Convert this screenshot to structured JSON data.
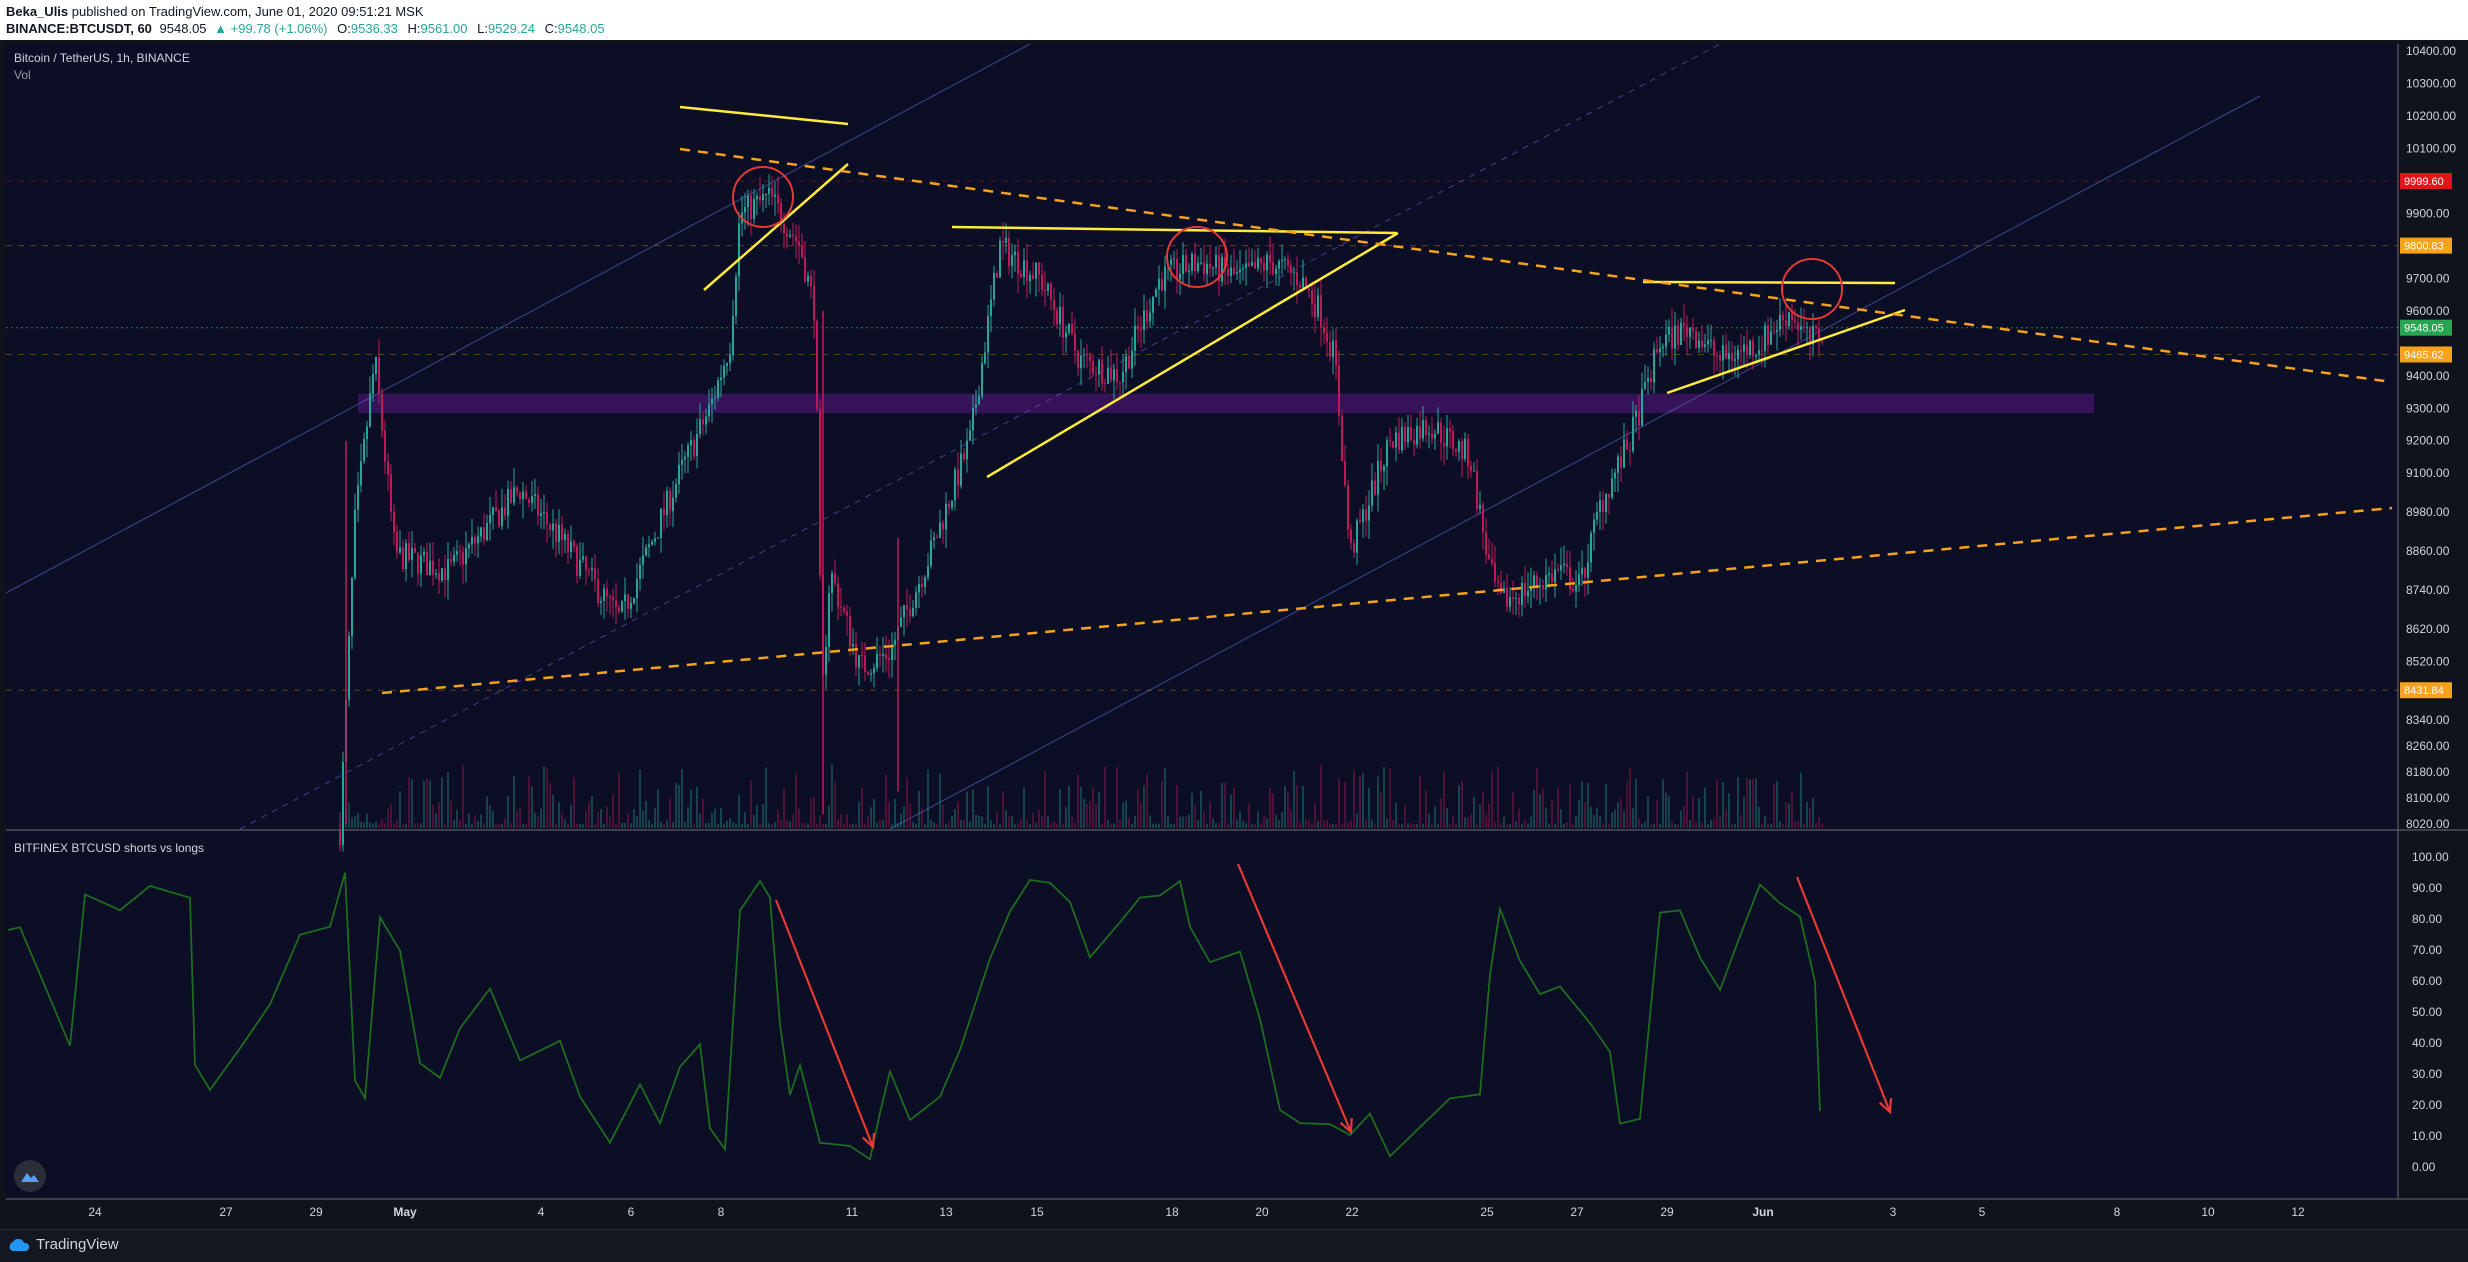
{
  "header": {
    "author": "Beka_Ulis",
    "published": "published on TradingView.com, June 01, 2020 09:51:21 MSK",
    "symbol": "BINANCE:BTCUSDT, 60",
    "last": "9548.05",
    "change": "+99.78 (+1.06%)",
    "ohlc": [
      {
        "k": "O:",
        "v": "9536.33"
      },
      {
        "k": "H:",
        "v": "9561.00"
      },
      {
        "k": "L:",
        "v": "9529.24"
      },
      {
        "k": "C:",
        "v": "9548.05"
      }
    ]
  },
  "main_pane": {
    "title": "Bitcoin / TetherUS, 1h, BINANCE",
    "subtitle": "Vol",
    "price_ticks": [
      "10400.00",
      "10300.00",
      "10200.00",
      "10100.00",
      "9900.00",
      "9700.00",
      "9600.00",
      "9400.00",
      "9300.00",
      "9200.00",
      "9100.00",
      "8980.00",
      "8860.00",
      "8740.00",
      "8620.00",
      "8520.00",
      "8420.00",
      "8340.00",
      "8260.00",
      "8180.00",
      "8100.00",
      "8020.00"
    ],
    "price_badges": [
      {
        "label": "9999.60",
        "color": "#e0161a"
      },
      {
        "label": "9800.83",
        "color": "#f6a21a"
      },
      {
        "label": "9548.05",
        "color": "#26a650"
      },
      {
        "label": "9465.62",
        "color": "#f6a21a"
      },
      {
        "label": "8431.84",
        "color": "#f6a21a"
      }
    ]
  },
  "indicator_pane": {
    "title": "BITFINEX BTCUSD shorts vs longs",
    "ticks": [
      "100.00",
      "90.00",
      "80.00",
      "70.00",
      "60.00",
      "50.00",
      "40.00",
      "30.00",
      "20.00",
      "10.00",
      "0.00"
    ]
  },
  "time_axis": [
    "24",
    "27",
    "29",
    "May",
    "4",
    "6",
    "8",
    "11",
    "13",
    "15",
    "18",
    "20",
    "22",
    "25",
    "27",
    "29",
    "Jun",
    "3",
    "5",
    "8",
    "10",
    "12"
  ],
  "footer": {
    "brand": "TradingView"
  },
  "chart_data": {
    "type": "line",
    "title": "Bitcoin / TetherUS, 1h, BINANCE",
    "price_ylim": [
      8020,
      10400
    ],
    "indicator_ylim": [
      0,
      100
    ],
    "series": [
      {
        "name": "BTCUSDT",
        "x": [
          "24",
          "27",
          "29",
          "May",
          "4",
          "6",
          "8",
          "11",
          "13",
          "15",
          "18",
          "20",
          "22",
          "25",
          "27",
          "29",
          "Jun"
        ],
        "values": [
          null,
          null,
          null,
          9000,
          8900,
          9200,
          9900,
          8450,
          9000,
          9700,
          9600,
          9650,
          9100,
          8700,
          8800,
          9500,
          9548
        ]
      },
      {
        "name": "BITFINEX BTCUSD shorts vs longs",
        "x": [
          "24",
          "27",
          "29",
          "May",
          "4",
          "6",
          "8",
          "11",
          "13",
          "15",
          "18",
          "20",
          "22",
          "25",
          "27",
          "29",
          "Jun"
        ],
        "values": [
          85,
          40,
          90,
          45,
          40,
          25,
          90,
          5,
          25,
          85,
          90,
          75,
          10,
          30,
          60,
          85,
          22
        ]
      }
    ]
  },
  "colors": {
    "background": "#0b0e24",
    "up": "#26a69a",
    "down": "#c2185b",
    "trend_solid": "#ffeb3b",
    "trend_dashed": "#f6a21a",
    "circle": "#e53935",
    "arrow": "#e53935",
    "zone": "#6a1b9a",
    "indicator": "#1f6b1f"
  }
}
